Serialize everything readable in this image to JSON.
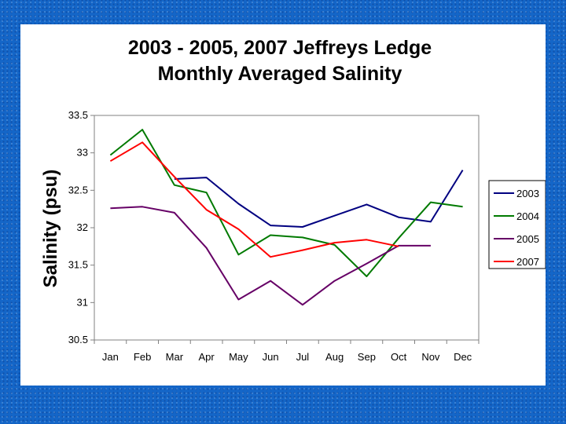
{
  "chart_data": {
    "type": "line",
    "title_lines": [
      "2003 - 2005, 2007 Jeffreys Ledge",
      "Monthly Averaged Salinity"
    ],
    "xlabel": "",
    "ylabel": "Salinity (psu)",
    "categories": [
      "Jan",
      "Feb",
      "Mar",
      "Apr",
      "May",
      "Jun",
      "Jul",
      "Aug",
      "Sep",
      "Oct",
      "Nov",
      "Dec"
    ],
    "ylim": [
      30.5,
      33.5
    ],
    "yticks": [
      "30.5",
      "31",
      "31.5",
      "32",
      "32.5",
      "33",
      "33.5"
    ],
    "grid": false,
    "legend_position": "right",
    "series": [
      {
        "name": "2003",
        "color": "#000080",
        "values": [
          null,
          null,
          32.65,
          32.67,
          32.32,
          32.03,
          32.01,
          32.16,
          32.31,
          32.14,
          32.08,
          32.77
        ]
      },
      {
        "name": "2004",
        "color": "#007a00",
        "values": [
          32.97,
          33.31,
          32.57,
          32.47,
          31.64,
          31.9,
          31.87,
          31.77,
          31.35,
          31.86,
          32.34,
          32.28
        ]
      },
      {
        "name": "2005",
        "color": "#660066",
        "values": [
          32.26,
          32.28,
          32.2,
          31.73,
          31.04,
          31.29,
          30.97,
          31.29,
          31.52,
          31.76,
          31.76,
          null
        ]
      },
      {
        "name": "2007",
        "color": "#ff0000",
        "values": [
          32.89,
          33.14,
          32.68,
          32.24,
          31.98,
          31.61,
          31.7,
          31.8,
          31.84,
          31.75,
          null,
          null
        ]
      }
    ]
  }
}
